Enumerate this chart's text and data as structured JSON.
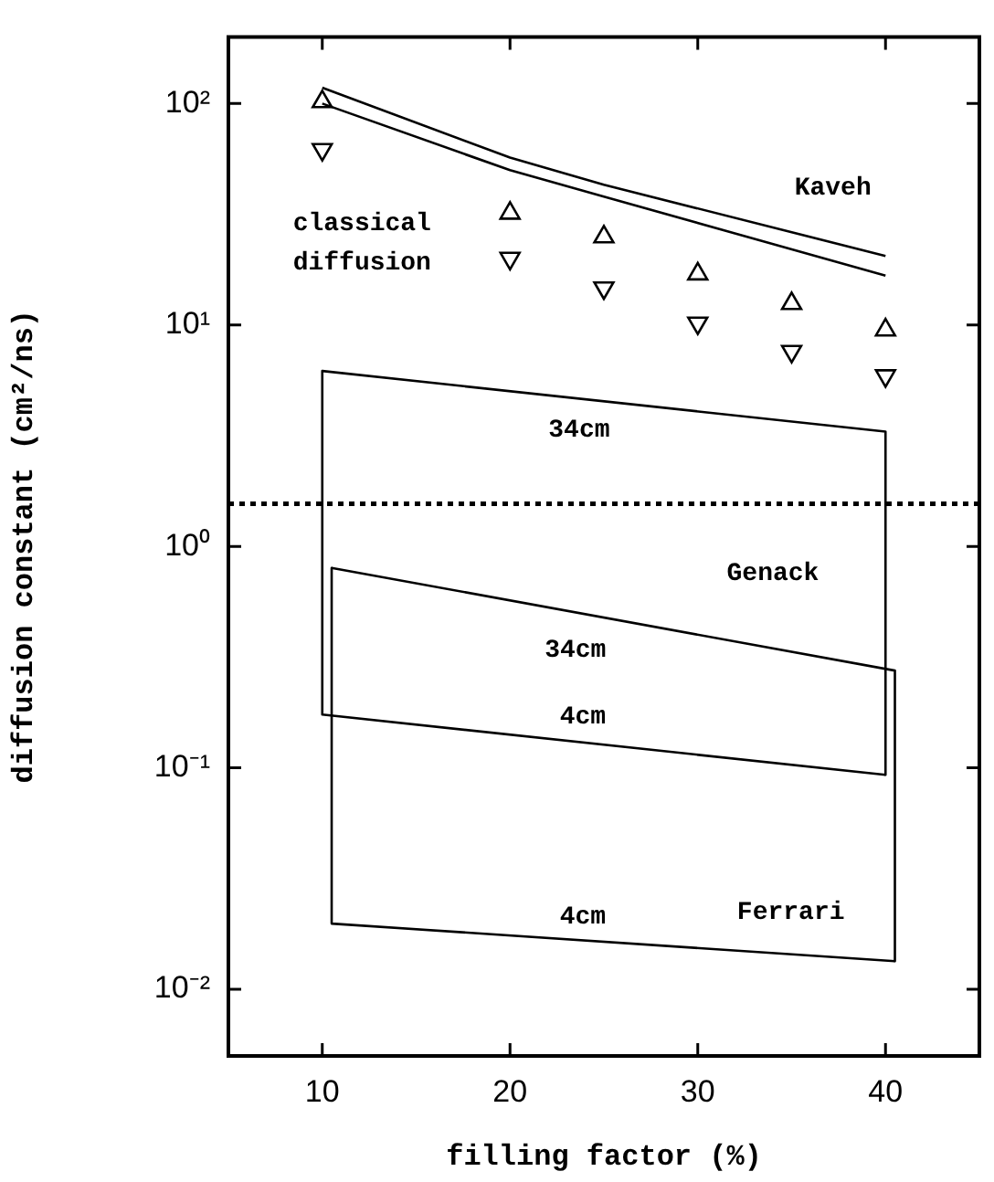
{
  "chart_data": {
    "type": "scatter",
    "xlabel": "filling factor (%)",
    "ylabel": "diffusion constant (cm²/ns)",
    "x": [
      10,
      20,
      25,
      30,
      35,
      40
    ],
    "series": [
      {
        "type": "scatter",
        "marker": "triangle",
        "color": "#000000",
        "values": [
          102,
          32,
          25,
          17,
          12.5,
          9.5
        ]
      },
      {
        "type": "scatter",
        "marker": "triangle-down",
        "color": "#000000",
        "values": [
          62,
          20,
          14.7,
          10.2,
          7.6,
          5.9
        ]
      },
      {
        "type": "line",
        "marker": "none",
        "color": "#000000",
        "x": [
          10,
          20,
          25,
          40
        ],
        "values": [
          118,
          57,
          43,
          20.5
        ]
      },
      {
        "type": "line",
        "marker": "none",
        "color": "#000000",
        "x": [
          10,
          20,
          25,
          40
        ],
        "values": [
          100,
          50,
          38,
          16.7
        ]
      },
      {
        "type": "line",
        "marker": "none",
        "color": "#000000",
        "x": [
          10,
          40,
          40
        ],
        "values": [
          6.2,
          3.3,
          0.093
        ]
      },
      {
        "type": "line",
        "marker": "none",
        "color": "#000000",
        "x": [
          10,
          10,
          40
        ],
        "values": [
          6.2,
          0.174,
          0.093
        ]
      },
      {
        "type": "line",
        "marker": "none",
        "color": "#000000",
        "x": [
          10.5,
          40.5,
          40.5
        ],
        "values": [
          0.8,
          0.275,
          0.0134
        ]
      },
      {
        "type": "line",
        "marker": "none",
        "color": "#000000",
        "x": [
          10.5,
          10.5,
          40.5
        ],
        "values": [
          0.8,
          0.0198,
          0.0134
        ]
      }
    ],
    "log": "y",
    "grid": false,
    "legend": false,
    "xlim": [
      5,
      45
    ],
    "xticks": [
      10,
      20,
      30,
      40
    ],
    "ylim": [
      0.005,
      200
    ],
    "yticks": [
      {
        "value": 0.01,
        "label": "10⁻²"
      },
      {
        "value": 0.1,
        "label": "10⁻¹"
      },
      {
        "value": 1,
        "label": "10⁰"
      },
      {
        "value": 10,
        "label": "10¹"
      },
      {
        "value": 100,
        "label": "10²"
      }
    ],
    "ref_lines": [
      {
        "axis": "y",
        "value": 1.56,
        "line_style": "dotted",
        "color": "#000000"
      }
    ],
    "annotations": [
      "Kaveh",
      "classical",
      "diffusion",
      "34cm",
      "Genack",
      "34cm",
      "4cm",
      "4cm",
      "Ferrari"
    ]
  }
}
